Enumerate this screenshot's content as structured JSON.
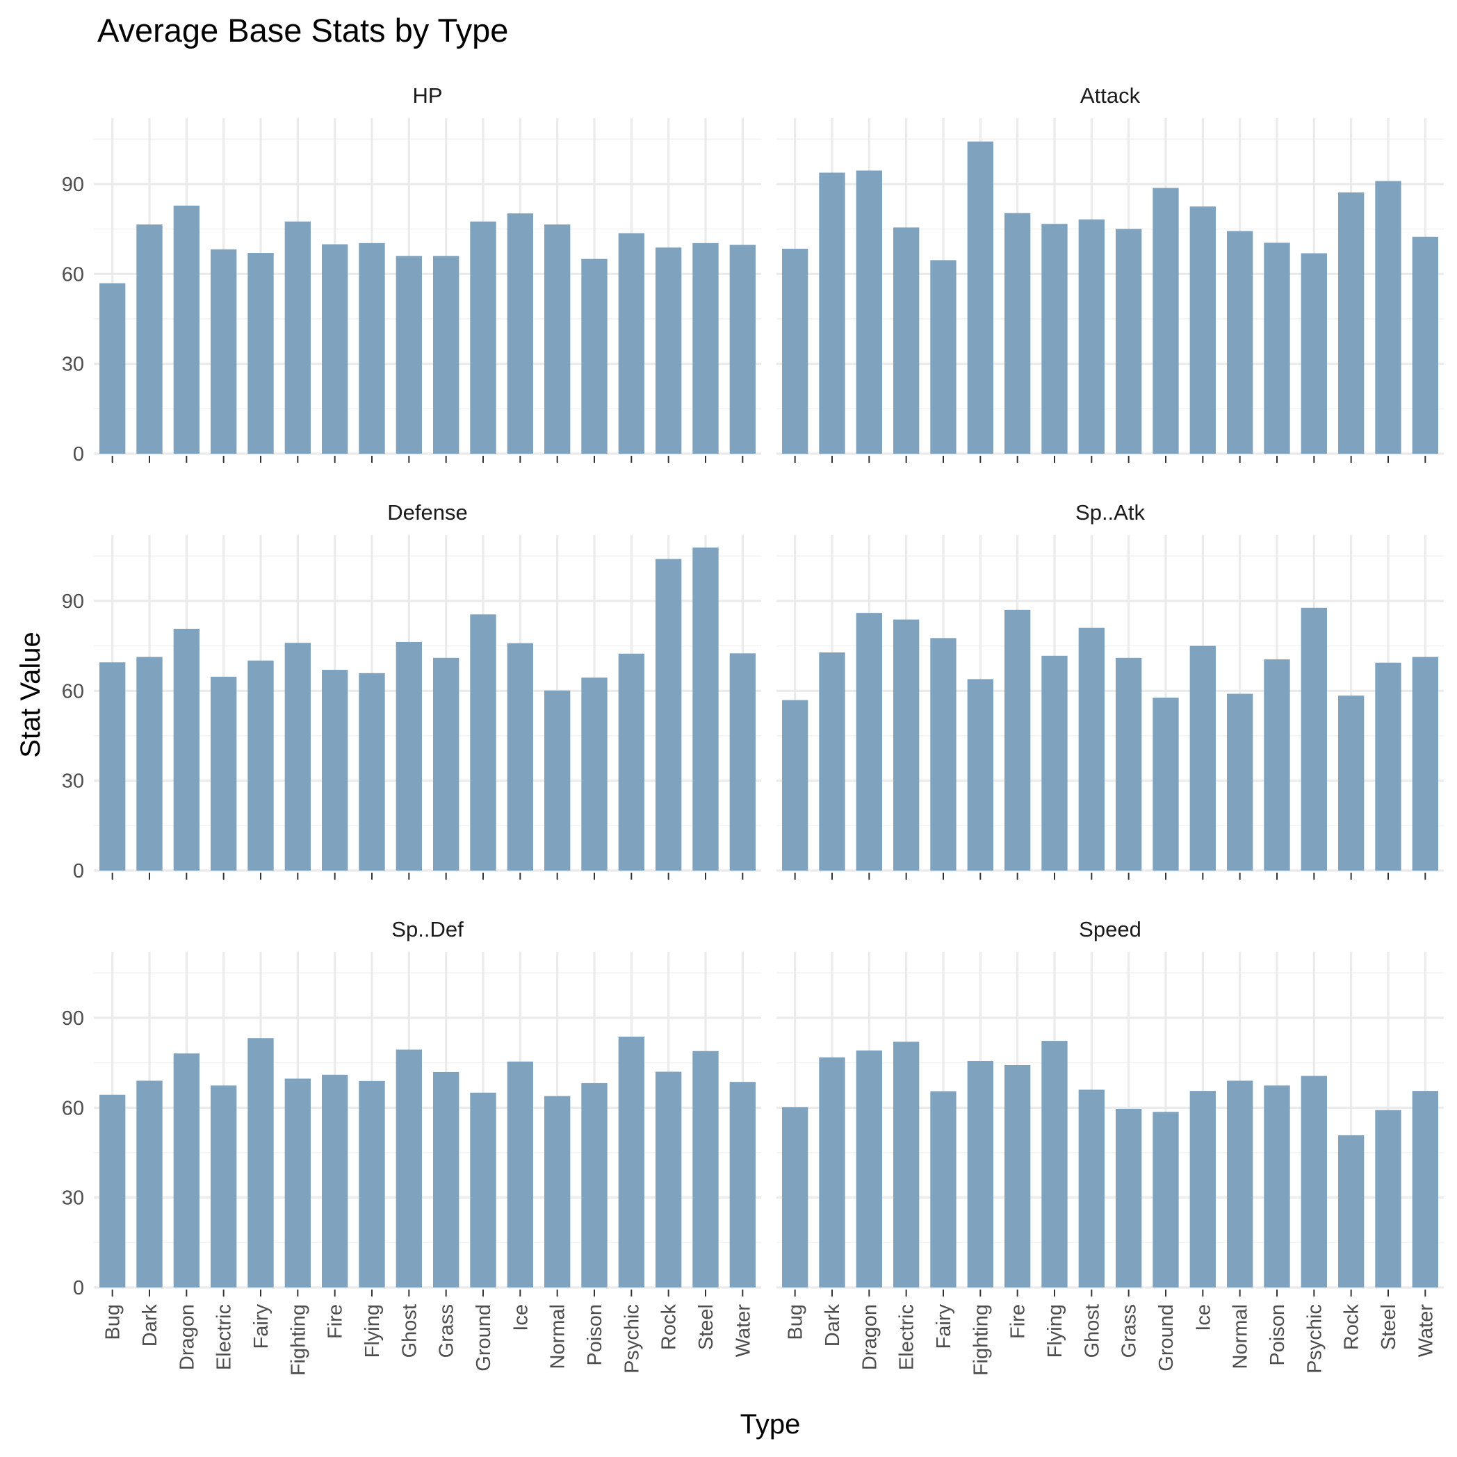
{
  "chart_data": {
    "type": "bar",
    "title": "Average Base Stats by Type",
    "xlabel": "Type",
    "ylabel": "Stat Value",
    "ylim": [
      0,
      112
    ],
    "yticks": [
      0,
      30,
      60,
      90
    ],
    "bar_color": "#7fa2bf",
    "grid": true,
    "categories": [
      "Bug",
      "Dark",
      "Dragon",
      "Electric",
      "Fairy",
      "Fighting",
      "Fire",
      "Flying",
      "Ghost",
      "Grass",
      "Ground",
      "Ice",
      "Normal",
      "Poison",
      "Psychic",
      "Rock",
      "Steel",
      "Water"
    ],
    "panels": [
      {
        "name": "HP",
        "values": [
          56.9,
          76.5,
          82.8,
          68.2,
          67.0,
          77.5,
          69.9,
          70.3,
          66.0,
          66.0,
          77.5,
          80.2,
          76.5,
          65.0,
          73.6,
          68.8,
          70.3,
          69.7
        ]
      },
      {
        "name": "Attack",
        "values": [
          68.4,
          93.8,
          94.5,
          75.5,
          64.6,
          104.2,
          80.3,
          76.7,
          78.2,
          75.0,
          88.7,
          82.5,
          74.3,
          70.4,
          66.9,
          87.2,
          91.0,
          72.4
        ]
      },
      {
        "name": "Defense",
        "values": [
          69.5,
          71.3,
          80.7,
          64.7,
          70.1,
          76.0,
          67.0,
          65.9,
          76.3,
          71.0,
          85.5,
          75.9,
          60.1,
          64.4,
          72.4,
          104.0,
          107.8,
          72.5
        ]
      },
      {
        "name": "Sp..Atk",
        "values": [
          56.9,
          72.8,
          86.0,
          83.8,
          77.6,
          63.9,
          87.0,
          71.7,
          81.0,
          71.0,
          57.7,
          75.0,
          59.0,
          70.5,
          87.7,
          58.4,
          69.4,
          71.3
        ]
      },
      {
        "name": "Sp..Def",
        "values": [
          64.3,
          69.0,
          78.1,
          67.4,
          83.2,
          69.7,
          71.0,
          68.9,
          79.4,
          71.9,
          65.0,
          75.4,
          63.9,
          68.2,
          83.7,
          72.0,
          78.9,
          68.6
        ]
      },
      {
        "name": "Speed",
        "values": [
          60.2,
          76.8,
          79.1,
          82.0,
          65.5,
          75.6,
          74.2,
          82.3,
          66.0,
          59.6,
          58.6,
          65.6,
          69.0,
          67.4,
          70.6,
          50.8,
          59.2,
          65.6
        ]
      }
    ]
  }
}
